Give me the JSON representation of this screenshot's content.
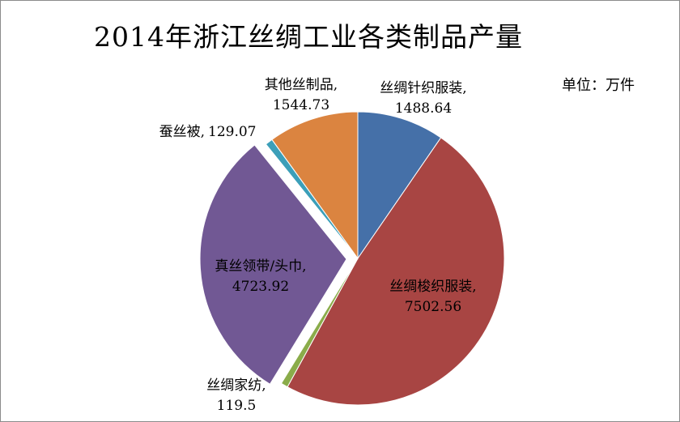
{
  "chart_data": {
    "type": "pie",
    "title": "2014年浙江丝绸工业各类制品产量",
    "unit_label": "单位：万件",
    "slices": [
      {
        "name": "丝绸针织服装,",
        "value": 1488.64,
        "value_label": "1488.64",
        "color": "#4570a8",
        "exploded": false
      },
      {
        "name": "丝绸梭织服装,",
        "value": 7502.56,
        "value_label": "7502.56",
        "color": "#a84543",
        "exploded": false
      },
      {
        "name": "丝绸家纺,",
        "value": 119.5,
        "value_label": "119.5",
        "color": "#8aac4a",
        "exploded": false
      },
      {
        "name": "真丝领带/头巾,",
        "value": 4723.92,
        "value_label": "4723.92",
        "color": "#715894",
        "exploded": true
      },
      {
        "name": "蚕丝被,",
        "value": 129.07,
        "value_label": "129.07",
        "color": "#3c9fb9",
        "exploded": false
      },
      {
        "name": "其他丝制品,",
        "value": 1544.73,
        "value_label": "1544.73",
        "color": "#db8440",
        "exploded": false
      }
    ]
  }
}
